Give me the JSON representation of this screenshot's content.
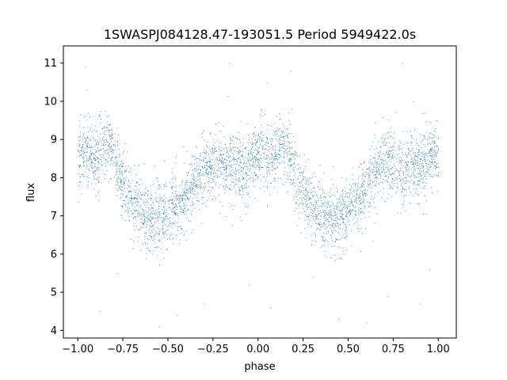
{
  "chart_data": {
    "type": "scatter",
    "title": "1SWASPJ084128.47-193051.5 Period 5949422.0s",
    "xlabel": "phase",
    "ylabel": "flux",
    "xlim": [
      -1.08,
      1.1
    ],
    "ylim": [
      3.8,
      11.45
    ],
    "x_ticks": [
      -1.0,
      -0.75,
      -0.5,
      -0.25,
      0.0,
      0.25,
      0.5,
      0.75,
      1.0
    ],
    "x_tick_labels": [
      "−1.00",
      "−0.75",
      "−0.50",
      "−0.25",
      "0.00",
      "0.25",
      "0.50",
      "0.75",
      "1.00"
    ],
    "y_ticks": [
      4,
      5,
      6,
      7,
      8,
      9,
      10,
      11
    ],
    "y_tick_labels": [
      "4",
      "5",
      "6",
      "7",
      "8",
      "9",
      "10",
      "11"
    ],
    "grid": false,
    "point_color": "#1f77b4",
    "series": [
      {
        "x": [
          -0.98,
          -0.95,
          -0.92,
          -0.9,
          -0.87,
          -0.85,
          -0.82,
          -0.8,
          -0.78,
          -0.75,
          -0.72,
          -0.7,
          -0.67,
          -0.65,
          -0.62,
          -0.6,
          -0.57,
          -0.55,
          -0.52,
          -0.5,
          -0.47,
          -0.45,
          -0.42,
          -0.4,
          -0.37,
          -0.35,
          -0.32,
          -0.3,
          -0.27,
          -0.25,
          -0.22,
          -0.2,
          -0.17,
          -0.15,
          -0.12,
          -0.1,
          -0.07,
          -0.05,
          -0.02,
          0.0,
          0.02,
          0.05,
          0.07,
          0.1,
          0.12,
          0.15,
          0.17,
          0.2,
          0.22,
          0.25,
          0.27,
          0.3,
          0.32,
          0.35,
          0.37,
          0.4,
          0.42,
          0.45,
          0.47,
          0.5,
          0.52,
          0.55,
          0.57,
          0.6,
          0.62,
          0.65,
          0.67,
          0.7,
          0.72,
          0.75,
          0.77,
          0.8,
          0.82,
          0.85,
          0.87,
          0.9,
          0.92,
          0.95,
          0.97,
          1.0
        ],
        "y": [
          8.6,
          8.8,
          8.4,
          8.5,
          8.7,
          8.9,
          8.9,
          8.6,
          8.2,
          7.9,
          7.6,
          7.4,
          7.3,
          7.2,
          7.1,
          7.0,
          7.0,
          6.9,
          7.0,
          7.1,
          7.2,
          7.3,
          7.4,
          7.6,
          7.8,
          7.9,
          8.1,
          8.2,
          8.3,
          8.4,
          8.4,
          8.2,
          8.2,
          8.3,
          8.4,
          8.3,
          8.2,
          8.4,
          8.6,
          8.6,
          8.8,
          8.4,
          8.5,
          8.7,
          8.9,
          8.9,
          8.6,
          8.2,
          7.9,
          7.6,
          7.4,
          7.3,
          7.2,
          7.1,
          7.0,
          7.0,
          6.9,
          7.0,
          7.1,
          7.2,
          7.3,
          7.4,
          7.6,
          7.8,
          7.9,
          8.1,
          8.2,
          8.3,
          8.4,
          8.4,
          8.2,
          8.2,
          8.3,
          8.4,
          8.3,
          8.2,
          8.4,
          8.6,
          8.6,
          8.6
        ],
        "outliers": [
          [
            -0.96,
            10.9
          ],
          [
            -0.95,
            10.3
          ],
          [
            -0.88,
            4.5
          ],
          [
            -0.78,
            5.5
          ],
          [
            -0.55,
            4.1
          ],
          [
            -0.45,
            4.4
          ],
          [
            -0.3,
            4.7
          ],
          [
            -0.16,
            11.0
          ],
          [
            -0.05,
            5.2
          ],
          [
            0.05,
            10.5
          ],
          [
            0.07,
            4.6
          ],
          [
            0.18,
            10.8
          ],
          [
            0.3,
            5.4
          ],
          [
            0.45,
            4.3
          ],
          [
            0.6,
            4.2
          ],
          [
            0.72,
            4.9
          ],
          [
            0.8,
            11.0
          ],
          [
            0.86,
            10.0
          ],
          [
            0.9,
            4.7
          ],
          [
            0.95,
            5.6
          ]
        ]
      }
    ]
  }
}
